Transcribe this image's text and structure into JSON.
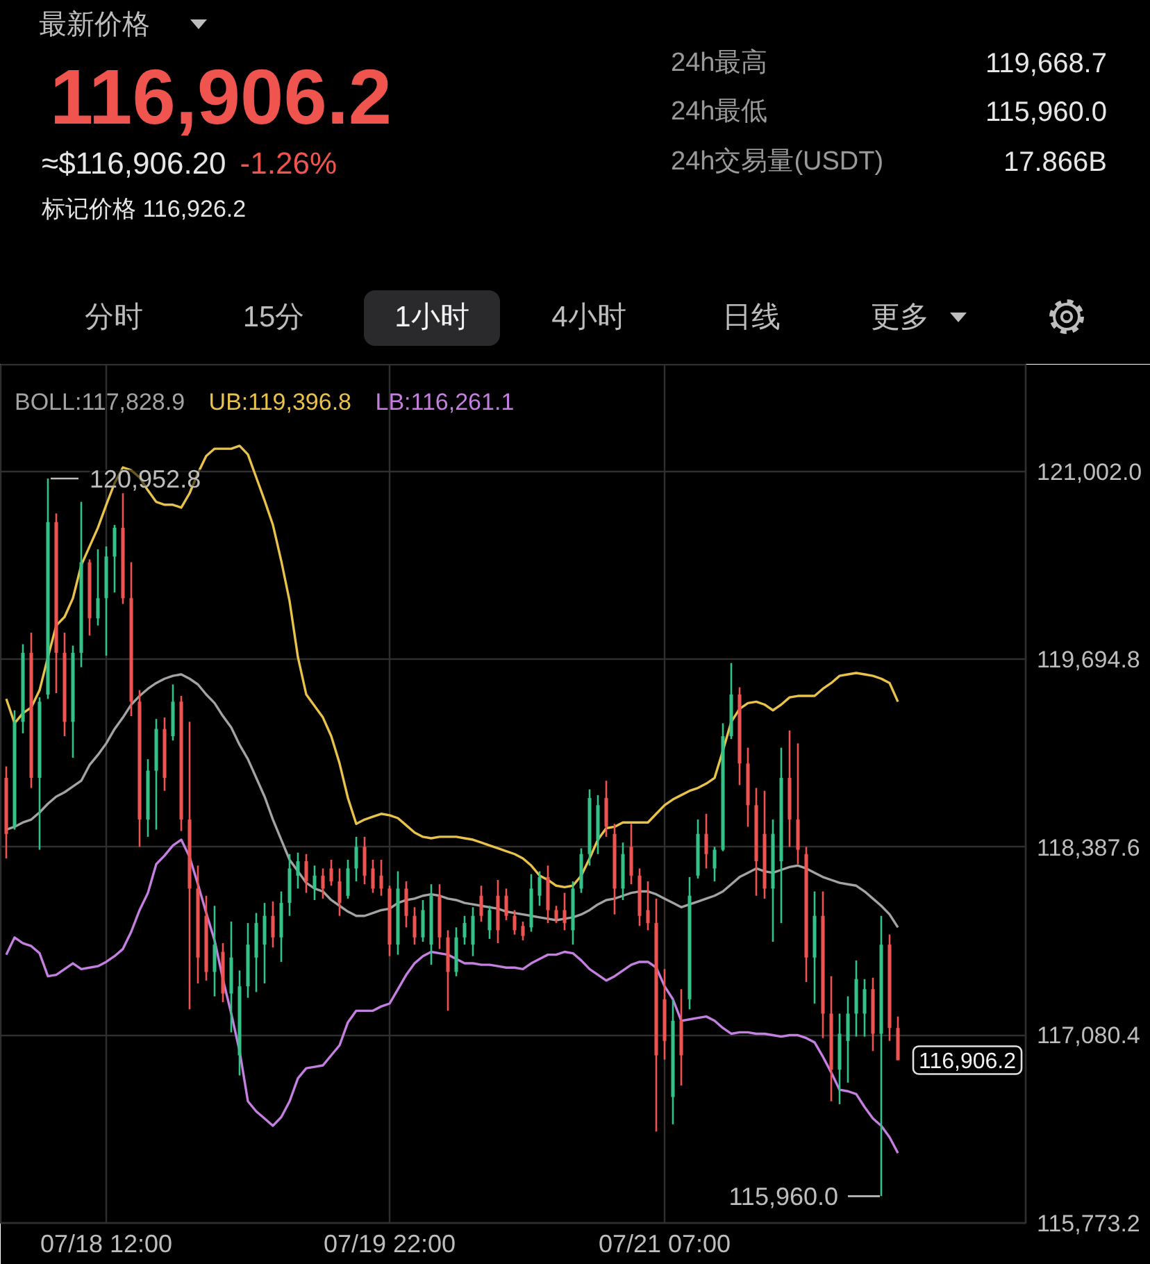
{
  "chart_data": {
    "type": "candlestick",
    "title": "最新价格",
    "categories": [
      null,
      null,
      null,
      null,
      null,
      null,
      null,
      null,
      null,
      null,
      null,
      null,
      "07/18 12:00",
      null,
      null,
      null,
      null,
      null,
      null,
      null,
      null,
      null,
      null,
      null,
      null,
      null,
      null,
      null,
      null,
      null,
      null,
      null,
      null,
      null,
      null,
      null,
      null,
      null,
      null,
      null,
      null,
      null,
      null,
      null,
      null,
      null,
      "07/19 22:00",
      null,
      null,
      null,
      null,
      null,
      null,
      null,
      null,
      null,
      null,
      null,
      null,
      null,
      null,
      null,
      null,
      null,
      null,
      null,
      null,
      null,
      null,
      null,
      null,
      null,
      null,
      null,
      null,
      null,
      null,
      null,
      null,
      "07/21 07:00",
      null,
      null,
      null,
      null,
      null,
      null,
      null,
      null,
      null,
      null,
      null,
      null,
      null,
      null,
      null,
      null,
      null,
      null,
      null,
      null,
      null,
      null,
      null,
      null,
      null,
      null,
      null,
      null
    ],
    "ohlc": [
      [
        118870,
        118950,
        118310,
        118480
      ],
      [
        118530,
        119340,
        118510,
        119260
      ],
      [
        119260,
        119800,
        119180,
        119740
      ],
      [
        119740,
        119880,
        118800,
        118870
      ],
      [
        118870,
        119430,
        118370,
        119400
      ],
      [
        119450,
        120952.8,
        119420,
        120650
      ],
      [
        120650,
        120710,
        119460,
        119740
      ],
      [
        119740,
        119880,
        119160,
        119260
      ],
      [
        119260,
        119790,
        119010,
        119740
      ],
      [
        119740,
        120790,
        119640,
        120370
      ],
      [
        120370,
        120390,
        119860,
        119980
      ],
      [
        119980,
        120460,
        119930,
        120120
      ],
      [
        120120,
        120480,
        119720,
        120410
      ],
      [
        120410,
        120630,
        120160,
        120610
      ],
      [
        120610,
        120850,
        120080,
        120120
      ],
      [
        120120,
        120370,
        119300,
        119400
      ],
      [
        119400,
        119480,
        118390,
        118580
      ],
      [
        118580,
        119000,
        118460,
        118920
      ],
      [
        118920,
        119280,
        118510,
        119210
      ],
      [
        119210,
        119290,
        118780,
        118870
      ],
      [
        119160,
        119520,
        119130,
        119400
      ],
      [
        119400,
        119440,
        118500,
        118580
      ],
      [
        118580,
        119260,
        117260,
        118100
      ],
      [
        118100,
        118260,
        117440,
        117620
      ],
      [
        117910,
        118050,
        117460,
        117520
      ],
      [
        117520,
        117980,
        117350,
        117710
      ],
      [
        117660,
        117720,
        117310,
        117370
      ],
      [
        117370,
        117870,
        117100,
        117620
      ],
      [
        116940,
        117530,
        116800,
        117420
      ],
      [
        117420,
        117860,
        117340,
        117710
      ],
      [
        117620,
        117930,
        117380,
        117860
      ],
      [
        117710,
        118000,
        117440,
        117910
      ],
      [
        117910,
        118010,
        117690,
        117760
      ],
      [
        117760,
        118080,
        117590,
        118000
      ],
      [
        118000,
        118340,
        117910,
        118240
      ],
      [
        118190,
        118350,
        118100,
        118290
      ],
      [
        118290,
        118340,
        118070,
        118150
      ],
      [
        118100,
        118260,
        118020,
        118190
      ],
      [
        118190,
        118240,
        118030,
        118100
      ],
      [
        118240,
        118300,
        118120,
        118150
      ],
      [
        118150,
        118240,
        117910,
        118000
      ],
      [
        118050,
        118300,
        118030,
        118240
      ],
      [
        118240,
        118460,
        118150,
        118390
      ],
      [
        118390,
        118460,
        118130,
        118190
      ],
      [
        118240,
        118300,
        118070,
        118100
      ],
      [
        118190,
        118300,
        118050,
        118100
      ],
      [
        118100,
        118120,
        117630,
        117710
      ],
      [
        117710,
        118220,
        117640,
        118100
      ],
      [
        118100,
        118150,
        117830,
        117910
      ],
      [
        117910,
        117970,
        117710,
        117760
      ],
      [
        117760,
        118020,
        117730,
        117950
      ],
      [
        117710,
        118130,
        117570,
        118050
      ],
      [
        118050,
        118130,
        117680,
        117760
      ],
      [
        117760,
        117810,
        117250,
        117520
      ],
      [
        117520,
        117830,
        117490,
        117760
      ],
      [
        117760,
        117910,
        117710,
        117860
      ],
      [
        117710,
        117970,
        117630,
        117910
      ],
      [
        118050,
        118120,
        117870,
        117910
      ],
      [
        117810,
        117980,
        117750,
        117950
      ],
      [
        118050,
        118160,
        117720,
        117810
      ],
      [
        118050,
        118100,
        117880,
        117910
      ],
      [
        117910,
        117950,
        117780,
        117810
      ],
      [
        117840,
        117870,
        117740,
        117770
      ],
      [
        117830,
        118200,
        117800,
        118100
      ],
      [
        118050,
        118220,
        117980,
        118180
      ],
      [
        118180,
        118260,
        117860,
        117950
      ],
      [
        117950,
        117980,
        117860,
        117890
      ],
      [
        117950,
        118070,
        117810,
        117860
      ],
      [
        117810,
        118150,
        117710,
        118100
      ],
      [
        118100,
        118380,
        118070,
        118340
      ],
      [
        118340,
        118790,
        118260,
        118730
      ],
      [
        118440,
        118750,
        118340,
        118680
      ],
      [
        118730,
        118850,
        118460,
        118530
      ],
      [
        118480,
        118550,
        117920,
        118100
      ],
      [
        118100,
        118420,
        118020,
        118340
      ],
      [
        118390,
        118550,
        118130,
        118190
      ],
      [
        118190,
        118240,
        117840,
        117910
      ],
      [
        117950,
        118150,
        117810,
        117860
      ],
      [
        117860,
        118030,
        116410,
        116940
      ],
      [
        117330,
        117540,
        116910,
        117040
      ],
      [
        116650,
        117330,
        116460,
        117180
      ],
      [
        117180,
        117400,
        116730,
        116940
      ],
      [
        117330,
        118180,
        117260,
        118050
      ],
      [
        118190,
        118580,
        118170,
        118480
      ],
      [
        118480,
        118620,
        118240,
        118340
      ],
      [
        118240,
        118390,
        118150,
        118370
      ],
      [
        118370,
        119250,
        118360,
        119160
      ],
      [
        119160,
        119668.7,
        119140,
        119450
      ],
      [
        119450,
        119500,
        118820,
        118970
      ],
      [
        118970,
        119080,
        118530,
        118680
      ],
      [
        118680,
        118800,
        118050,
        118290
      ],
      [
        118480,
        118780,
        118030,
        118100
      ],
      [
        118100,
        118580,
        117730,
        118480
      ],
      [
        118290,
        119080,
        117860,
        118870
      ],
      [
        118870,
        119200,
        118390,
        118580
      ],
      [
        118580,
        119110,
        118270,
        118370
      ],
      [
        118340,
        118390,
        117450,
        117620
      ],
      [
        117620,
        118080,
        117300,
        117910
      ],
      [
        117910,
        118080,
        117060,
        117230
      ],
      [
        117230,
        117490,
        116620,
        116840
      ],
      [
        116840,
        117230,
        116600,
        117090
      ],
      [
        117040,
        117350,
        116750,
        117230
      ],
      [
        117230,
        117600,
        117070,
        117470
      ],
      [
        117230,
        117470,
        117070,
        117400
      ],
      [
        117400,
        117480,
        116970,
        117090
      ],
      [
        117090,
        117910,
        115960.0,
        117710
      ],
      [
        117710,
        117780,
        117040,
        117130
      ],
      [
        117130,
        117210,
        116906.2,
        116906.2
      ]
    ],
    "series": [
      {
        "name": "BOLL:117,828.9",
        "color": "#a3a3a3",
        "type": "line",
        "values": [
          118510,
          118530,
          118560,
          118580,
          118630,
          118690,
          118740,
          118770,
          118810,
          118850,
          118960,
          119030,
          119110,
          119210,
          119290,
          119380,
          119440,
          119490,
          119530,
          119560,
          119580,
          119590,
          119560,
          119520,
          119450,
          119390,
          119300,
          119220,
          119100,
          119000,
          118870,
          118740,
          118580,
          118440,
          118300,
          118220,
          118140,
          118100,
          118080,
          118020,
          117980,
          117940,
          117910,
          117910,
          117930,
          117950,
          117960,
          118000,
          118020,
          118030,
          118050,
          118060,
          118050,
          118030,
          118020,
          118000,
          117990,
          117980,
          117970,
          117960,
          117940,
          117930,
          117920,
          117910,
          117900,
          117890,
          117880,
          117890,
          117900,
          117920,
          117950,
          117990,
          118020,
          118030,
          118050,
          118070,
          118080,
          118080,
          118060,
          118030,
          118000,
          117970,
          117990,
          118010,
          118030,
          118050,
          118080,
          118130,
          118180,
          118210,
          118240,
          118220,
          118210,
          118230,
          118250,
          118260,
          118240,
          118210,
          118180,
          118160,
          118140,
          118130,
          118120,
          118080,
          118030,
          117980,
          117920,
          117830
        ]
      },
      {
        "name": "UB:119,396.8",
        "color": "#e8c24a",
        "type": "line",
        "values": [
          119420,
          119250,
          119320,
          119360,
          119480,
          119710,
          119930,
          119990,
          120120,
          120350,
          120480,
          120610,
          120770,
          120920,
          121030,
          121010,
          120960,
          120870,
          120790,
          120770,
          120770,
          120750,
          120850,
          120990,
          121110,
          121160,
          121160,
          121160,
          121180,
          121120,
          120960,
          120800,
          120630,
          120380,
          120100,
          119710,
          119450,
          119370,
          119290,
          119160,
          118970,
          118730,
          118550,
          118580,
          118600,
          118620,
          118610,
          118590,
          118540,
          118490,
          118460,
          118450,
          118460,
          118460,
          118460,
          118450,
          118440,
          118420,
          118400,
          118380,
          118360,
          118340,
          118310,
          118260,
          118190,
          118160,
          118120,
          118110,
          118120,
          118190,
          118310,
          118440,
          118520,
          118530,
          118560,
          118560,
          118560,
          118560,
          118620,
          118680,
          118720,
          118750,
          118780,
          118800,
          118830,
          118870,
          119060,
          119260,
          119350,
          119390,
          119400,
          119380,
          119340,
          119380,
          119430,
          119440,
          119440,
          119440,
          119490,
          119530,
          119580,
          119590,
          119600,
          119590,
          119580,
          119560,
          119530,
          119400
        ]
      },
      {
        "name": "LB:116,261.1",
        "color": "#c47fe0",
        "type": "line",
        "values": [
          117640,
          117760,
          117720,
          117700,
          117650,
          117490,
          117500,
          117540,
          117580,
          117540,
          117550,
          117560,
          117590,
          117630,
          117680,
          117800,
          117950,
          118070,
          118270,
          118330,
          118400,
          118440,
          118320,
          118130,
          117930,
          117740,
          117470,
          117230,
          116970,
          116620,
          116550,
          116500,
          116450,
          116510,
          116620,
          116780,
          116850,
          116860,
          116870,
          116940,
          117010,
          117170,
          117250,
          117250,
          117250,
          117280,
          117300,
          117400,
          117500,
          117580,
          117630,
          117660,
          117650,
          117640,
          117610,
          117580,
          117580,
          117570,
          117570,
          117560,
          117550,
          117550,
          117540,
          117580,
          117610,
          117640,
          117640,
          117660,
          117650,
          117600,
          117540,
          117500,
          117460,
          117490,
          117530,
          117570,
          117590,
          117590,
          117550,
          117420,
          117330,
          117180,
          117190,
          117200,
          117210,
          117180,
          117130,
          117090,
          117100,
          117100,
          117090,
          117090,
          117080,
          117070,
          117080,
          117080,
          117060,
          117030,
          116930,
          116820,
          116700,
          116690,
          116670,
          116580,
          116500,
          116450,
          116370,
          116260
        ]
      }
    ],
    "ylim": [
      115773.2,
      121745
    ],
    "yticks": [
      {
        "value": 115773.2,
        "label": "115,773.2"
      },
      {
        "value": 117080.4,
        "label": "117,080.4"
      },
      {
        "value": 118387.6,
        "label": "118,387.6"
      },
      {
        "value": 119694.8,
        "label": "119,694.8"
      },
      {
        "value": 121002.0,
        "label": "121,002.0"
      }
    ],
    "grid": true,
    "legend": "top left",
    "line_style": "solid",
    "annotations": [
      "116,906.2",
      "≈$116,906.20",
      "-1.26%",
      "标记价格 116,926.2",
      "24h最高",
      "119,668.7",
      "24h最低",
      "115,960.0",
      "24h交易量(USDT)",
      "17.866B",
      "分时",
      "15分",
      "1小时",
      "4小时",
      "日线",
      "更多",
      "120,952.8",
      "115,960.0",
      "116,906.2"
    ]
  }
}
